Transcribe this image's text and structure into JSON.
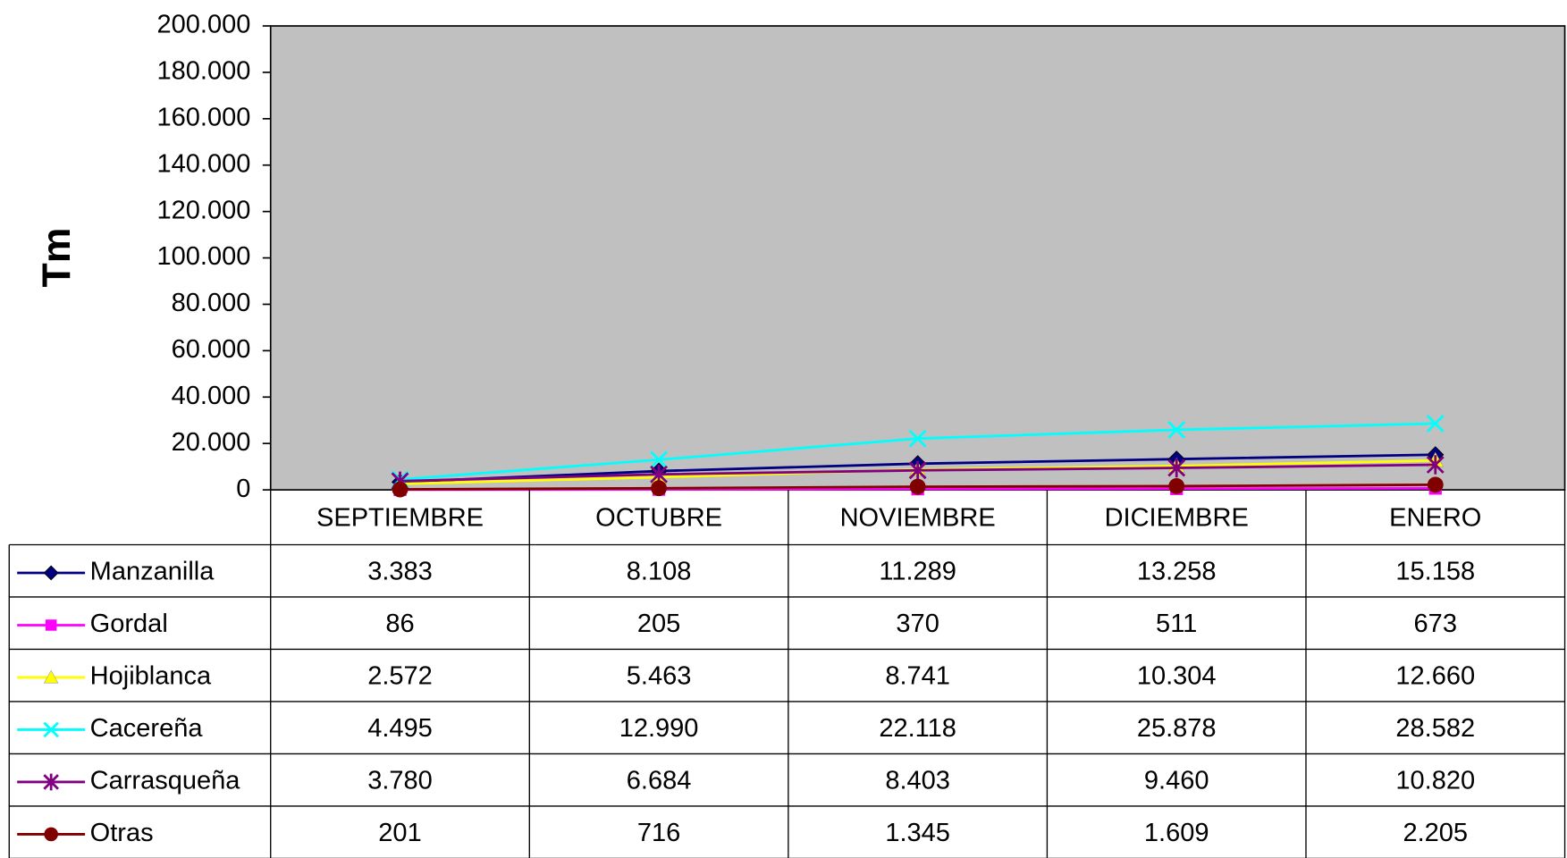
{
  "chart_data": {
    "type": "line",
    "y_label": "Tm",
    "categories": [
      "SEPTIEMBRE",
      "OCTUBRE",
      "NOVIEMBRE",
      "DICIEMBRE",
      "ENERO"
    ],
    "ylim": [
      0,
      200000
    ],
    "yticks": [
      0,
      {
        "value": 20000,
        "label": "20.000"
      },
      {
        "value": 40000,
        "label": "40.000"
      },
      {
        "value": 60000,
        "label": "60.000"
      },
      {
        "value": 80000,
        "label": "80.000"
      },
      {
        "value": 100000,
        "label": "100.000"
      },
      {
        "value": 120000,
        "label": "120.000"
      },
      {
        "value": 140000,
        "label": "140.000"
      },
      {
        "value": 160000,
        "label": "160.000"
      },
      {
        "value": 180000,
        "label": "180.000"
      },
      {
        "value": 200000,
        "label": "200.000"
      }
    ],
    "grid": false,
    "plot_background": "#c0c0c0",
    "series": [
      {
        "name": "Manzanilla",
        "color": "#000080",
        "marker": "diamond",
        "values": [
          3383,
          8108,
          11289,
          13258,
          15158
        ],
        "value_labels": [
          "3.383",
          "8.108",
          "11.289",
          "13.258",
          "15.158"
        ]
      },
      {
        "name": "Gordal",
        "color": "#ff00ff",
        "marker": "square",
        "values": [
          86,
          205,
          370,
          511,
          673
        ],
        "value_labels": [
          "86",
          "205",
          "370",
          "511",
          "673"
        ]
      },
      {
        "name": "Hojiblanca",
        "color": "#ffff00",
        "marker": "triangle",
        "values": [
          2572,
          5463,
          8741,
          10304,
          12660
        ],
        "value_labels": [
          "2.572",
          "5.463",
          "8.741",
          "10.304",
          "12.660"
        ]
      },
      {
        "name": "Cacereña",
        "color": "#00ffff",
        "marker": "x",
        "values": [
          4495,
          12990,
          22118,
          25878,
          28582
        ],
        "value_labels": [
          "4.495",
          "12.990",
          "22.118",
          "25.878",
          "28.582"
        ]
      },
      {
        "name": "Carrasqueña",
        "color": "#800080",
        "marker": "star",
        "values": [
          3780,
          6684,
          8403,
          9460,
          10820
        ],
        "value_labels": [
          "3.780",
          "6.684",
          "8.403",
          "9.460",
          "10.820"
        ]
      },
      {
        "name": "Otras",
        "color": "#800000",
        "marker": "circle",
        "values": [
          201,
          716,
          1345,
          1609,
          2205
        ],
        "value_labels": [
          "201",
          "716",
          "1.345",
          "1.609",
          "2.205"
        ]
      }
    ]
  }
}
